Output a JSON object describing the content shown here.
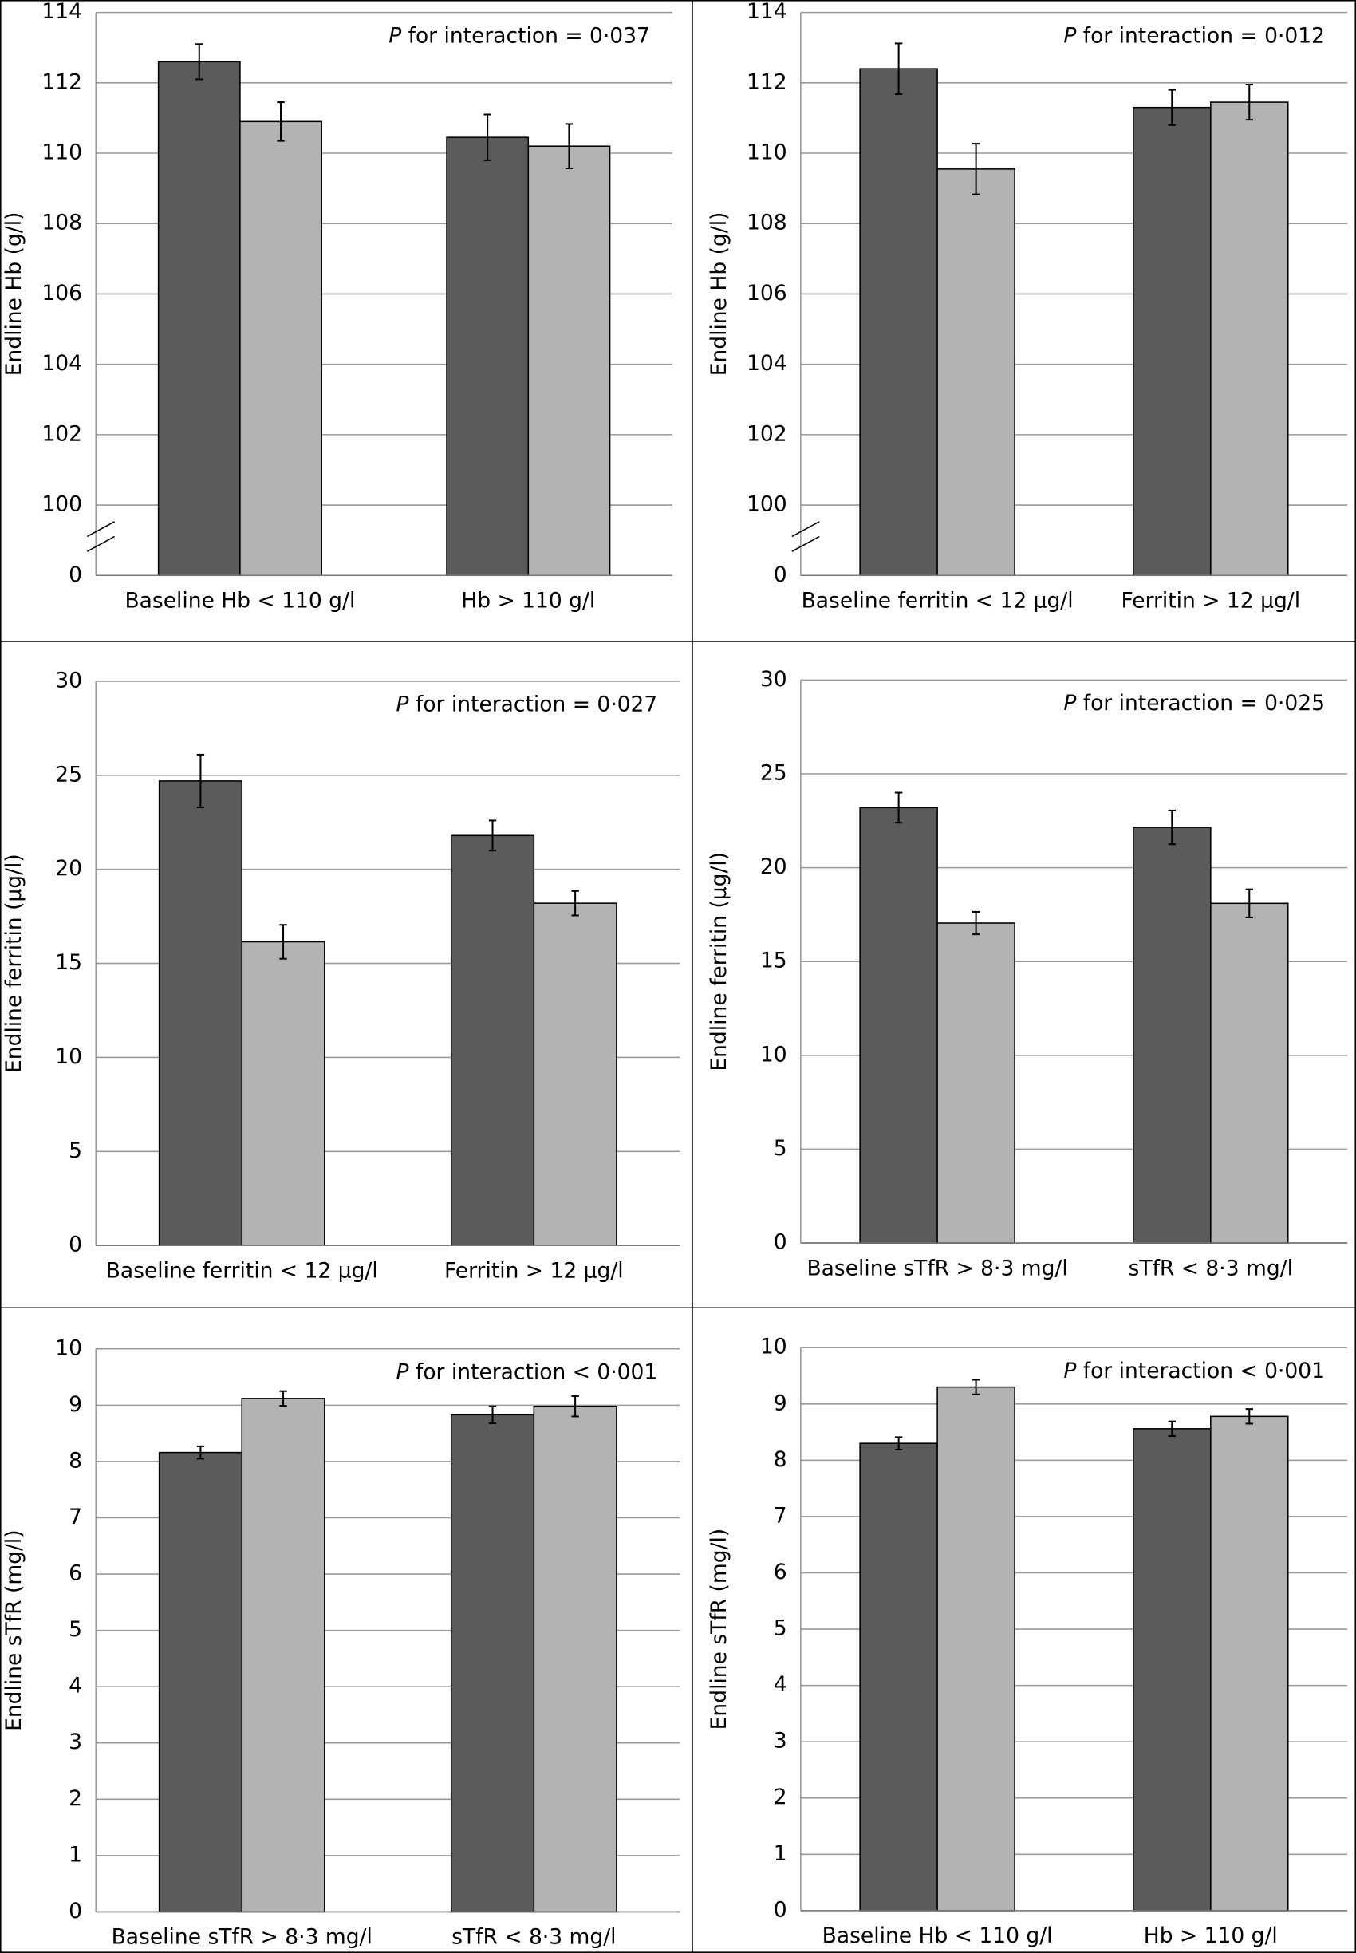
{
  "chart_data": [
    {
      "type": "bar",
      "ylabel": "Endline Hb (g/l)",
      "annotation": "P for interaction = 0·037",
      "categories": [
        "Baseline Hb < 110 g/l",
        "Hb > 110 g/l"
      ],
      "series": [
        {
          "color": "#5b5b5b",
          "values": [
            112.6,
            110.45
          ],
          "errors": [
            0.5,
            0.65
          ]
        },
        {
          "color": "#b3b3b3",
          "values": [
            110.9,
            110.2
          ],
          "errors": [
            0.55,
            0.63
          ]
        }
      ],
      "ylim": [
        0,
        114
      ],
      "axis_break": [
        0,
        100
      ],
      "yticks": [
        0,
        100,
        102,
        104,
        106,
        108,
        110,
        112,
        114
      ],
      "grid": true
    },
    {
      "type": "bar",
      "ylabel": "Endline Hb (g/l)",
      "annotation": "P for interaction = 0·012",
      "categories": [
        "Baseline ferritin < 12 μg/l",
        "Ferritin > 12 μg/l"
      ],
      "series": [
        {
          "color": "#5b5b5b",
          "values": [
            112.4,
            111.3
          ],
          "errors": [
            0.72,
            0.5
          ]
        },
        {
          "color": "#b3b3b3",
          "values": [
            109.55,
            111.45
          ],
          "errors": [
            0.72,
            0.5
          ]
        }
      ],
      "ylim": [
        0,
        114
      ],
      "axis_break": [
        0,
        100
      ],
      "yticks": [
        0,
        100,
        102,
        104,
        106,
        108,
        110,
        112,
        114
      ],
      "grid": true
    },
    {
      "type": "bar",
      "ylabel": "Endline ferritin (μg/l)",
      "annotation": "P for interaction = 0·027",
      "categories": [
        "Baseline ferritin < 12 μg/l",
        "Ferritin > 12 μg/l"
      ],
      "series": [
        {
          "color": "#5b5b5b",
          "values": [
            24.7,
            21.8
          ],
          "errors": [
            1.4,
            0.8
          ]
        },
        {
          "color": "#b3b3b3",
          "values": [
            16.15,
            18.2
          ],
          "errors": [
            0.9,
            0.65
          ]
        }
      ],
      "ylim": [
        0,
        30
      ],
      "yticks": [
        0,
        5,
        10,
        15,
        20,
        25,
        30
      ],
      "grid": true
    },
    {
      "type": "bar",
      "ylabel": "Endline ferritin (μg/l)",
      "annotation": "P for interaction = 0·025",
      "categories": [
        "Baseline sTfR > 8·3 mg/l",
        "sTfR < 8·3 mg/l"
      ],
      "series": [
        {
          "color": "#5b5b5b",
          "values": [
            23.2,
            22.15
          ],
          "errors": [
            0.8,
            0.9
          ]
        },
        {
          "color": "#b3b3b3",
          "values": [
            17.05,
            18.1
          ],
          "errors": [
            0.6,
            0.75
          ]
        }
      ],
      "ylim": [
        0,
        30
      ],
      "yticks": [
        0,
        5,
        10,
        15,
        20,
        25,
        30
      ],
      "grid": true
    },
    {
      "type": "bar",
      "ylabel": "Endline sTfR (mg/l)",
      "annotation": "P for interaction < 0·001",
      "categories": [
        "Baseline sTfR > 8·3 mg/l",
        "sTfR < 8·3 mg/l"
      ],
      "series": [
        {
          "color": "#5b5b5b",
          "values": [
            8.16,
            8.83
          ],
          "errors": [
            0.11,
            0.15
          ]
        },
        {
          "color": "#b3b3b3",
          "values": [
            9.12,
            8.98
          ],
          "errors": [
            0.13,
            0.18
          ]
        }
      ],
      "ylim": [
        0,
        10
      ],
      "yticks": [
        0,
        1,
        2,
        3,
        4,
        5,
        6,
        7,
        8,
        9,
        10
      ],
      "grid": true
    },
    {
      "type": "bar",
      "ylabel": "Endline sTfR (mg/l)",
      "annotation": "P for interaction < 0·001",
      "categories": [
        "Baseline Hb < 110 g/l",
        "Hb > 110 g/l"
      ],
      "series": [
        {
          "color": "#5b5b5b",
          "values": [
            8.3,
            8.56
          ],
          "errors": [
            0.11,
            0.13
          ]
        },
        {
          "color": "#b3b3b3",
          "values": [
            9.3,
            8.78
          ],
          "errors": [
            0.13,
            0.13
          ]
        }
      ],
      "ylim": [
        0,
        10
      ],
      "yticks": [
        0,
        1,
        2,
        3,
        4,
        5,
        6,
        7,
        8,
        9,
        10
      ],
      "grid": true
    }
  ]
}
